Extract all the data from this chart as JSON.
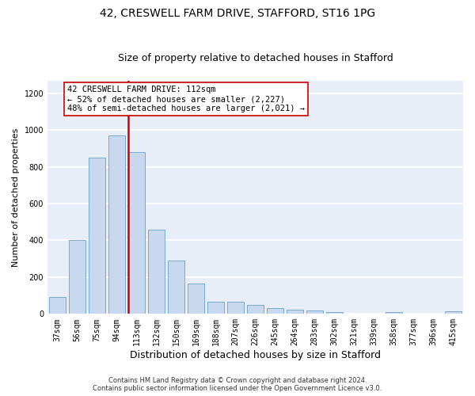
{
  "title1": "42, CRESWELL FARM DRIVE, STAFFORD, ST16 1PG",
  "title2": "Size of property relative to detached houses in Stafford",
  "xlabel": "Distribution of detached houses by size in Stafford",
  "ylabel": "Number of detached properties",
  "categories": [
    "37sqm",
    "56sqm",
    "75sqm",
    "94sqm",
    "113sqm",
    "132sqm",
    "150sqm",
    "169sqm",
    "188sqm",
    "207sqm",
    "226sqm",
    "245sqm",
    "264sqm",
    "283sqm",
    "302sqm",
    "321sqm",
    "339sqm",
    "358sqm",
    "377sqm",
    "396sqm",
    "415sqm"
  ],
  "values": [
    90,
    400,
    850,
    970,
    880,
    460,
    290,
    165,
    68,
    68,
    48,
    30,
    25,
    18,
    10,
    0,
    0,
    10,
    0,
    0,
    13
  ],
  "bar_color": "#c8d8ee",
  "bar_edgecolor": "#7aaad0",
  "vline_x_index": 4,
  "vline_color": "#cc0000",
  "annotation_text": "42 CRESWELL FARM DRIVE: 112sqm\n← 52% of detached houses are smaller (2,227)\n48% of semi-detached houses are larger (2,021) →",
  "annotation_box_edgecolor": "#cc0000",
  "annotation_fontsize": 7.5,
  "footer_text": "Contains HM Land Registry data © Crown copyright and database right 2024.\nContains public sector information licensed under the Open Government Licence v3.0.",
  "ylim": [
    0,
    1270
  ],
  "yticks": [
    0,
    200,
    400,
    600,
    800,
    1000,
    1200
  ],
  "background_color": "#e8eef8",
  "grid_color": "#ffffff",
  "title1_fontsize": 10,
  "title2_fontsize": 9,
  "xlabel_fontsize": 9,
  "ylabel_fontsize": 8,
  "tick_fontsize": 7,
  "footer_fontsize": 6
}
